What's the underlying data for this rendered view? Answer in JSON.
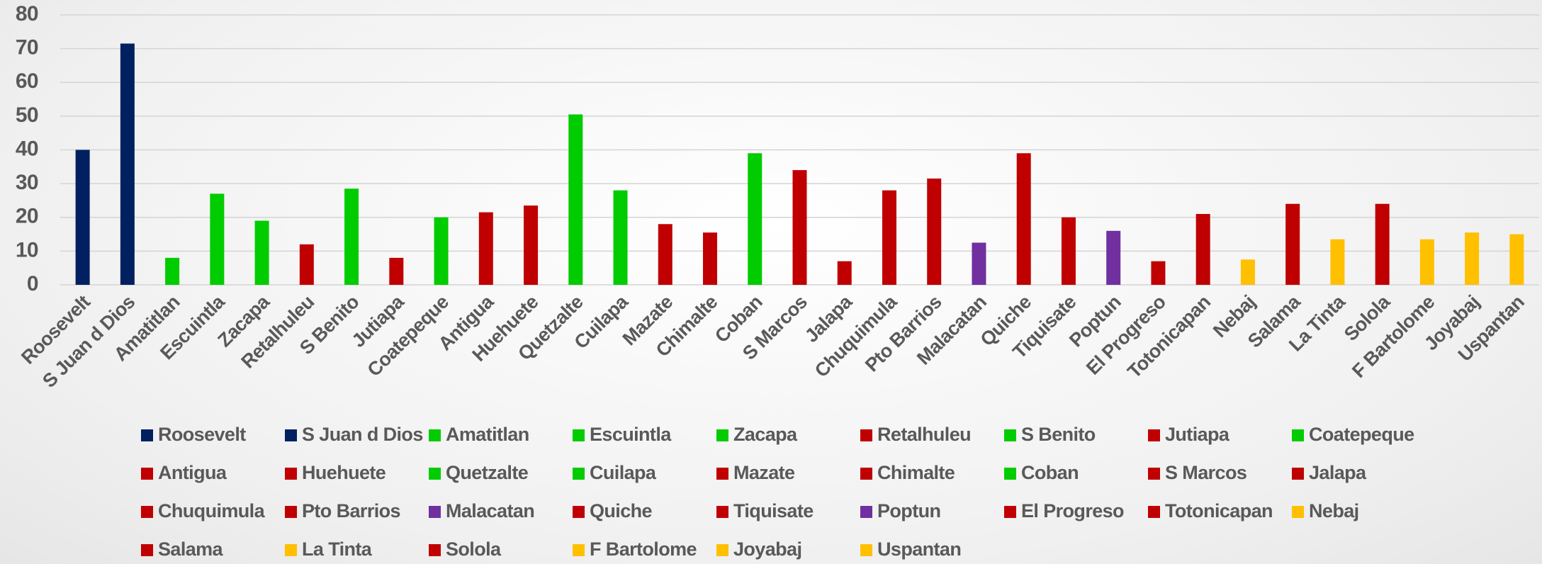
{
  "chart_data": {
    "type": "bar",
    "categories": [
      "Roosevelt",
      "S Juan d Dios",
      "Amatitlan",
      "Escuintla",
      "Zacapa",
      "Retalhuleu",
      "S Benito",
      "Jutiapa",
      "Coatepeque",
      "Antigua",
      "Huehuete",
      "Quetzalte",
      "Cuilapa",
      "Mazate",
      "Chimalte",
      "Coban",
      "S Marcos",
      "Jalapa",
      "Chuquimula",
      "Pto Barrios",
      "Malacatan",
      "Quiche",
      "Tiquisate",
      "Poptun",
      "El Progreso",
      "Totonicapan",
      "Nebaj",
      "Salama",
      "La Tinta",
      "Solola",
      "F Bartolome",
      "Joyabaj",
      "Uspantan"
    ],
    "values": [
      40,
      71.5,
      8,
      27,
      19,
      12,
      28.5,
      8,
      20,
      21.5,
      23.5,
      50.5,
      28,
      18,
      15.5,
      39,
      34,
      7,
      28,
      31.5,
      12.5,
      39,
      20,
      16,
      7,
      21,
      7.5,
      24,
      13.5,
      24,
      13.5,
      15.5,
      15
    ],
    "colors": [
      "#002060",
      "#002060",
      "#00cc00",
      "#00cc00",
      "#00cc00",
      "#c00000",
      "#00cc00",
      "#c00000",
      "#00cc00",
      "#c00000",
      "#c00000",
      "#00cc00",
      "#00cc00",
      "#c00000",
      "#c00000",
      "#00cc00",
      "#c00000",
      "#c00000",
      "#c00000",
      "#c00000",
      "#7030a0",
      "#c00000",
      "#c00000",
      "#7030a0",
      "#c00000",
      "#c00000",
      "#ffc000",
      "#c00000",
      "#ffc000",
      "#c00000",
      "#ffc000",
      "#ffc000",
      "#ffc000"
    ],
    "ylim": [
      0,
      80
    ],
    "yticks": [
      0,
      10,
      20,
      30,
      40,
      50,
      60,
      70,
      80
    ],
    "grid": true,
    "legend": "bottom"
  }
}
